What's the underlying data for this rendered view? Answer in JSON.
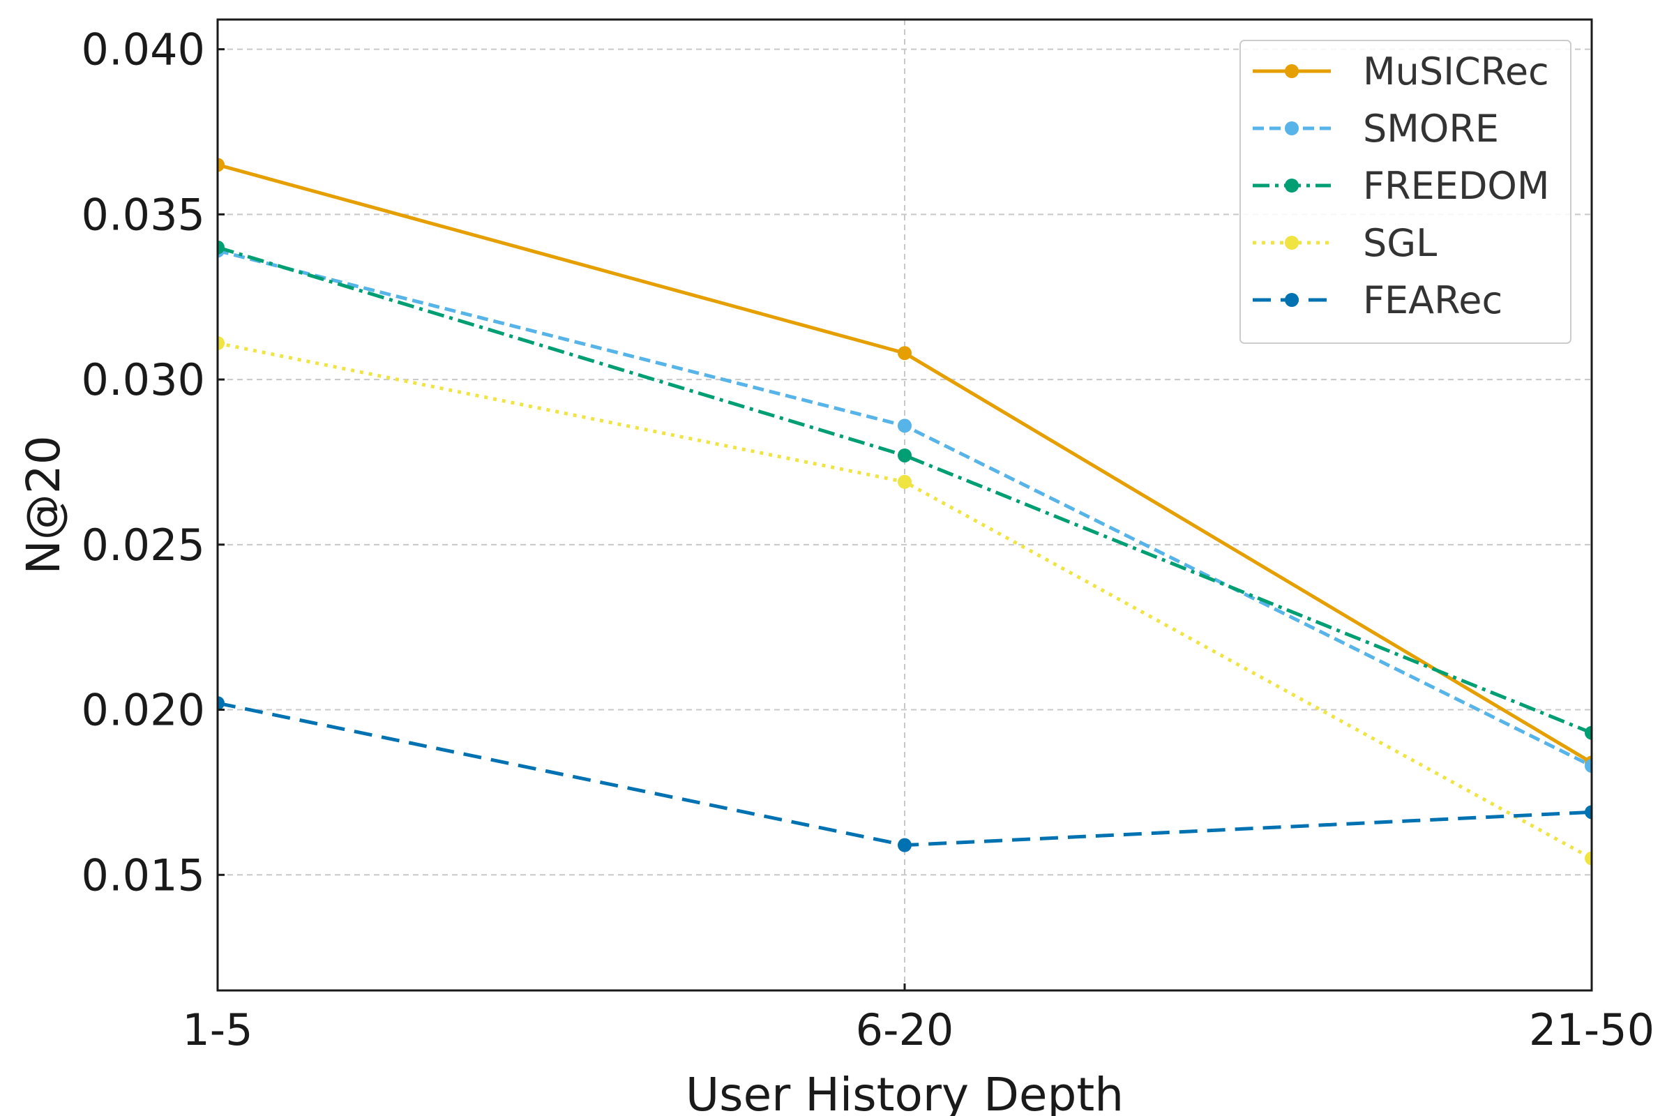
{
  "chart_data": {
    "type": "line",
    "title": "",
    "xlabel": "User History Depth",
    "ylabel": "N@20",
    "categories": [
      "1-5",
      "6-20",
      "21-50"
    ],
    "ylim": [
      0.0115,
      0.0409
    ],
    "yticks": [
      0.015,
      0.02,
      0.025,
      0.03,
      0.035,
      0.04
    ],
    "ytick_labels": [
      "0.015",
      "0.020",
      "0.025",
      "0.030",
      "0.035",
      "0.040"
    ],
    "grid": true,
    "legend_position": "top-right",
    "series": [
      {
        "name": "MuSICRec",
        "values": [
          0.0365,
          0.0308,
          0.0184
        ],
        "color": "#E69F00",
        "dash": "solid"
      },
      {
        "name": "SMORE",
        "values": [
          0.0339,
          0.0286,
          0.0183
        ],
        "color": "#56B4E9",
        "dash": "dashed"
      },
      {
        "name": "FREEDOM",
        "values": [
          0.034,
          0.0277,
          0.0193
        ],
        "color": "#009E73",
        "dash": "dashdot"
      },
      {
        "name": "SGL",
        "values": [
          0.0311,
          0.0269,
          0.0155
        ],
        "color": "#F0E442",
        "dash": "dotted"
      },
      {
        "name": "FEARec",
        "values": [
          0.0202,
          0.0159,
          0.0169
        ],
        "color": "#0072B2",
        "dash": "longdash"
      }
    ]
  }
}
